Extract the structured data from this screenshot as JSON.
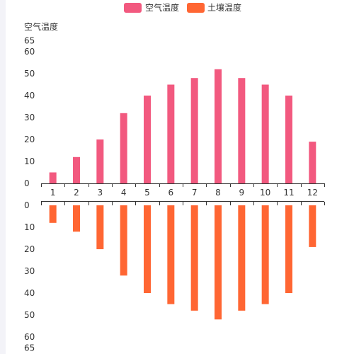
{
  "chart_data": {
    "type": "bar",
    "layout": "mirrored-vertical",
    "categories": [
      "1",
      "2",
      "3",
      "4",
      "5",
      "6",
      "7",
      "8",
      "9",
      "10",
      "11",
      "12"
    ],
    "legend": [
      {
        "name": "空气温度",
        "color": "#f2597f"
      },
      {
        "name": "土壤温度",
        "color": "#ff6633"
      }
    ],
    "legend_position": "top-center",
    "series": [
      {
        "name": "空气温度",
        "color": "#f2597f",
        "values": [
          5,
          12,
          20,
          32,
          40,
          45,
          48,
          52,
          48,
          45,
          40,
          19
        ]
      },
      {
        "name": "土壤温度",
        "color": "#ff6633",
        "values": [
          8,
          12,
          20,
          32,
          40,
          45,
          48,
          52,
          48,
          45,
          40,
          19
        ]
      }
    ],
    "top_axis": {
      "name": "空气温度",
      "ylim": [
        0,
        65
      ],
      "ticks": [
        "0",
        "10",
        "20",
        "30",
        "40",
        "50",
        "60",
        "65"
      ]
    },
    "bottom_axis": {
      "inverse": true,
      "ylim": [
        0,
        65
      ],
      "ticks": [
        "0",
        "10",
        "20",
        "30",
        "40",
        "50",
        "60",
        "65"
      ]
    },
    "grid": false
  }
}
